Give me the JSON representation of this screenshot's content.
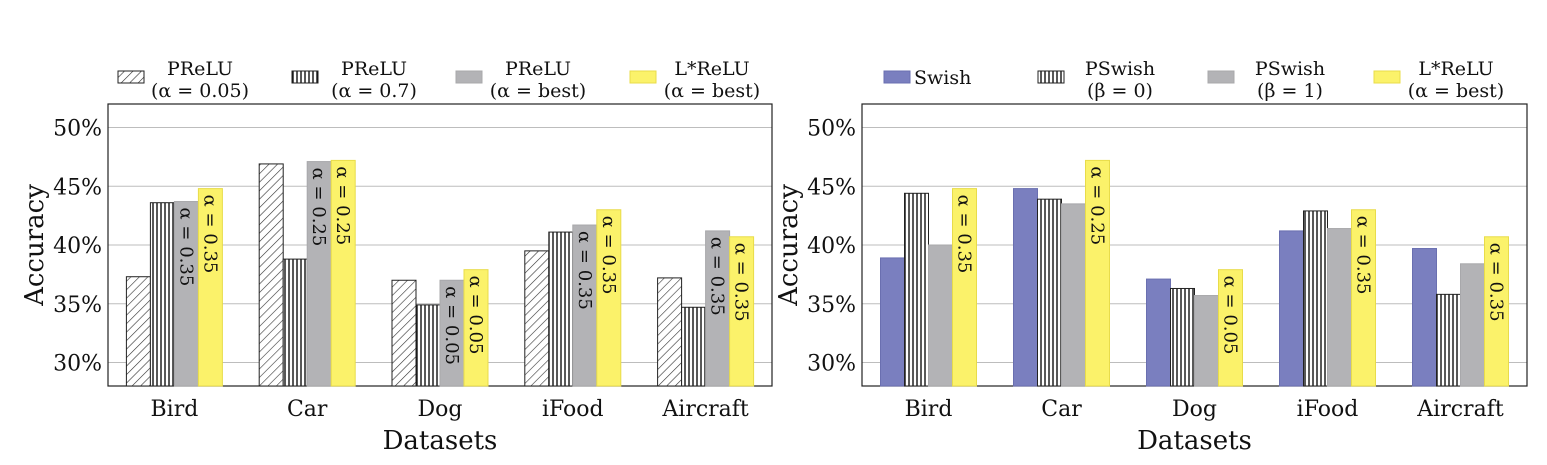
{
  "colors": {
    "blue": "#7a7fbf",
    "gray": "#b3b3b6",
    "yellow": "#fbf26a",
    "white": "#ffffff"
  },
  "chart_data": [
    {
      "id": "prelu",
      "type": "bar",
      "categories": [
        "Bird",
        "Car",
        "Dog",
        "iFood",
        "Aircraft"
      ],
      "xlabel": "Datasets",
      "ylabel": "Accuracy",
      "ylim": [
        28,
        52
      ],
      "yticks": [
        30,
        35,
        40,
        45,
        50
      ],
      "ytick_labels": [
        "30%",
        "35%",
        "40%",
        "45%",
        "50%"
      ],
      "grid": true,
      "legend_position": "top",
      "series": [
        {
          "name": "PReLU",
          "name_sub": "(α = 0.05)",
          "style": "hatch-diagonal",
          "values": [
            37.3,
            46.9,
            37.0,
            39.5,
            37.2
          ]
        },
        {
          "name": "PReLU",
          "name_sub": "(α = 0.7)",
          "style": "hatch-vertical",
          "values": [
            43.6,
            38.8,
            34.9,
            41.1,
            34.7
          ]
        },
        {
          "name": "PReLU",
          "name_sub": "(α = best)",
          "style": "gray",
          "values": [
            43.7,
            47.1,
            37.0,
            41.7,
            41.2
          ],
          "labels": [
            "α = 0.35",
            "α = 0.25",
            "α = 0.05",
            "α = 0.35",
            "α = 0.35"
          ]
        },
        {
          "name": "L*ReLU",
          "name_sub": "(α = best)",
          "style": "yellow",
          "values": [
            44.8,
            47.2,
            37.9,
            43.0,
            40.7
          ],
          "labels": [
            "α = 0.35",
            "α = 0.25",
            "α = 0.05",
            "α = 0.35",
            "α = 0.35"
          ]
        }
      ]
    },
    {
      "id": "swish",
      "type": "bar",
      "categories": [
        "Bird",
        "Car",
        "Dog",
        "iFood",
        "Aircraft"
      ],
      "xlabel": "Datasets",
      "ylabel": "Accuracy",
      "ylim": [
        28,
        52
      ],
      "yticks": [
        30,
        35,
        40,
        45,
        50
      ],
      "ytick_labels": [
        "30%",
        "35%",
        "40%",
        "45%",
        "50%"
      ],
      "grid": true,
      "legend_position": "top",
      "series": [
        {
          "name": "Swish",
          "name_sub": "",
          "style": "blue",
          "values": [
            38.9,
            44.8,
            37.1,
            41.2,
            39.7
          ]
        },
        {
          "name": "PSwish",
          "name_sub": "(β = 0)",
          "style": "hatch-vertical",
          "values": [
            44.4,
            43.9,
            36.3,
            42.9,
            35.8
          ]
        },
        {
          "name": "PSwish",
          "name_sub": "(β = 1)",
          "style": "gray",
          "values": [
            40.0,
            43.5,
            35.7,
            41.4,
            38.4
          ]
        },
        {
          "name": "L*ReLU",
          "name_sub": "(α = best)",
          "style": "yellow",
          "values": [
            44.8,
            47.2,
            37.9,
            43.0,
            40.7
          ],
          "labels": [
            "α = 0.35",
            "α = 0.25",
            "α = 0.05",
            "α = 0.35",
            "α = 0.35"
          ]
        }
      ]
    }
  ]
}
